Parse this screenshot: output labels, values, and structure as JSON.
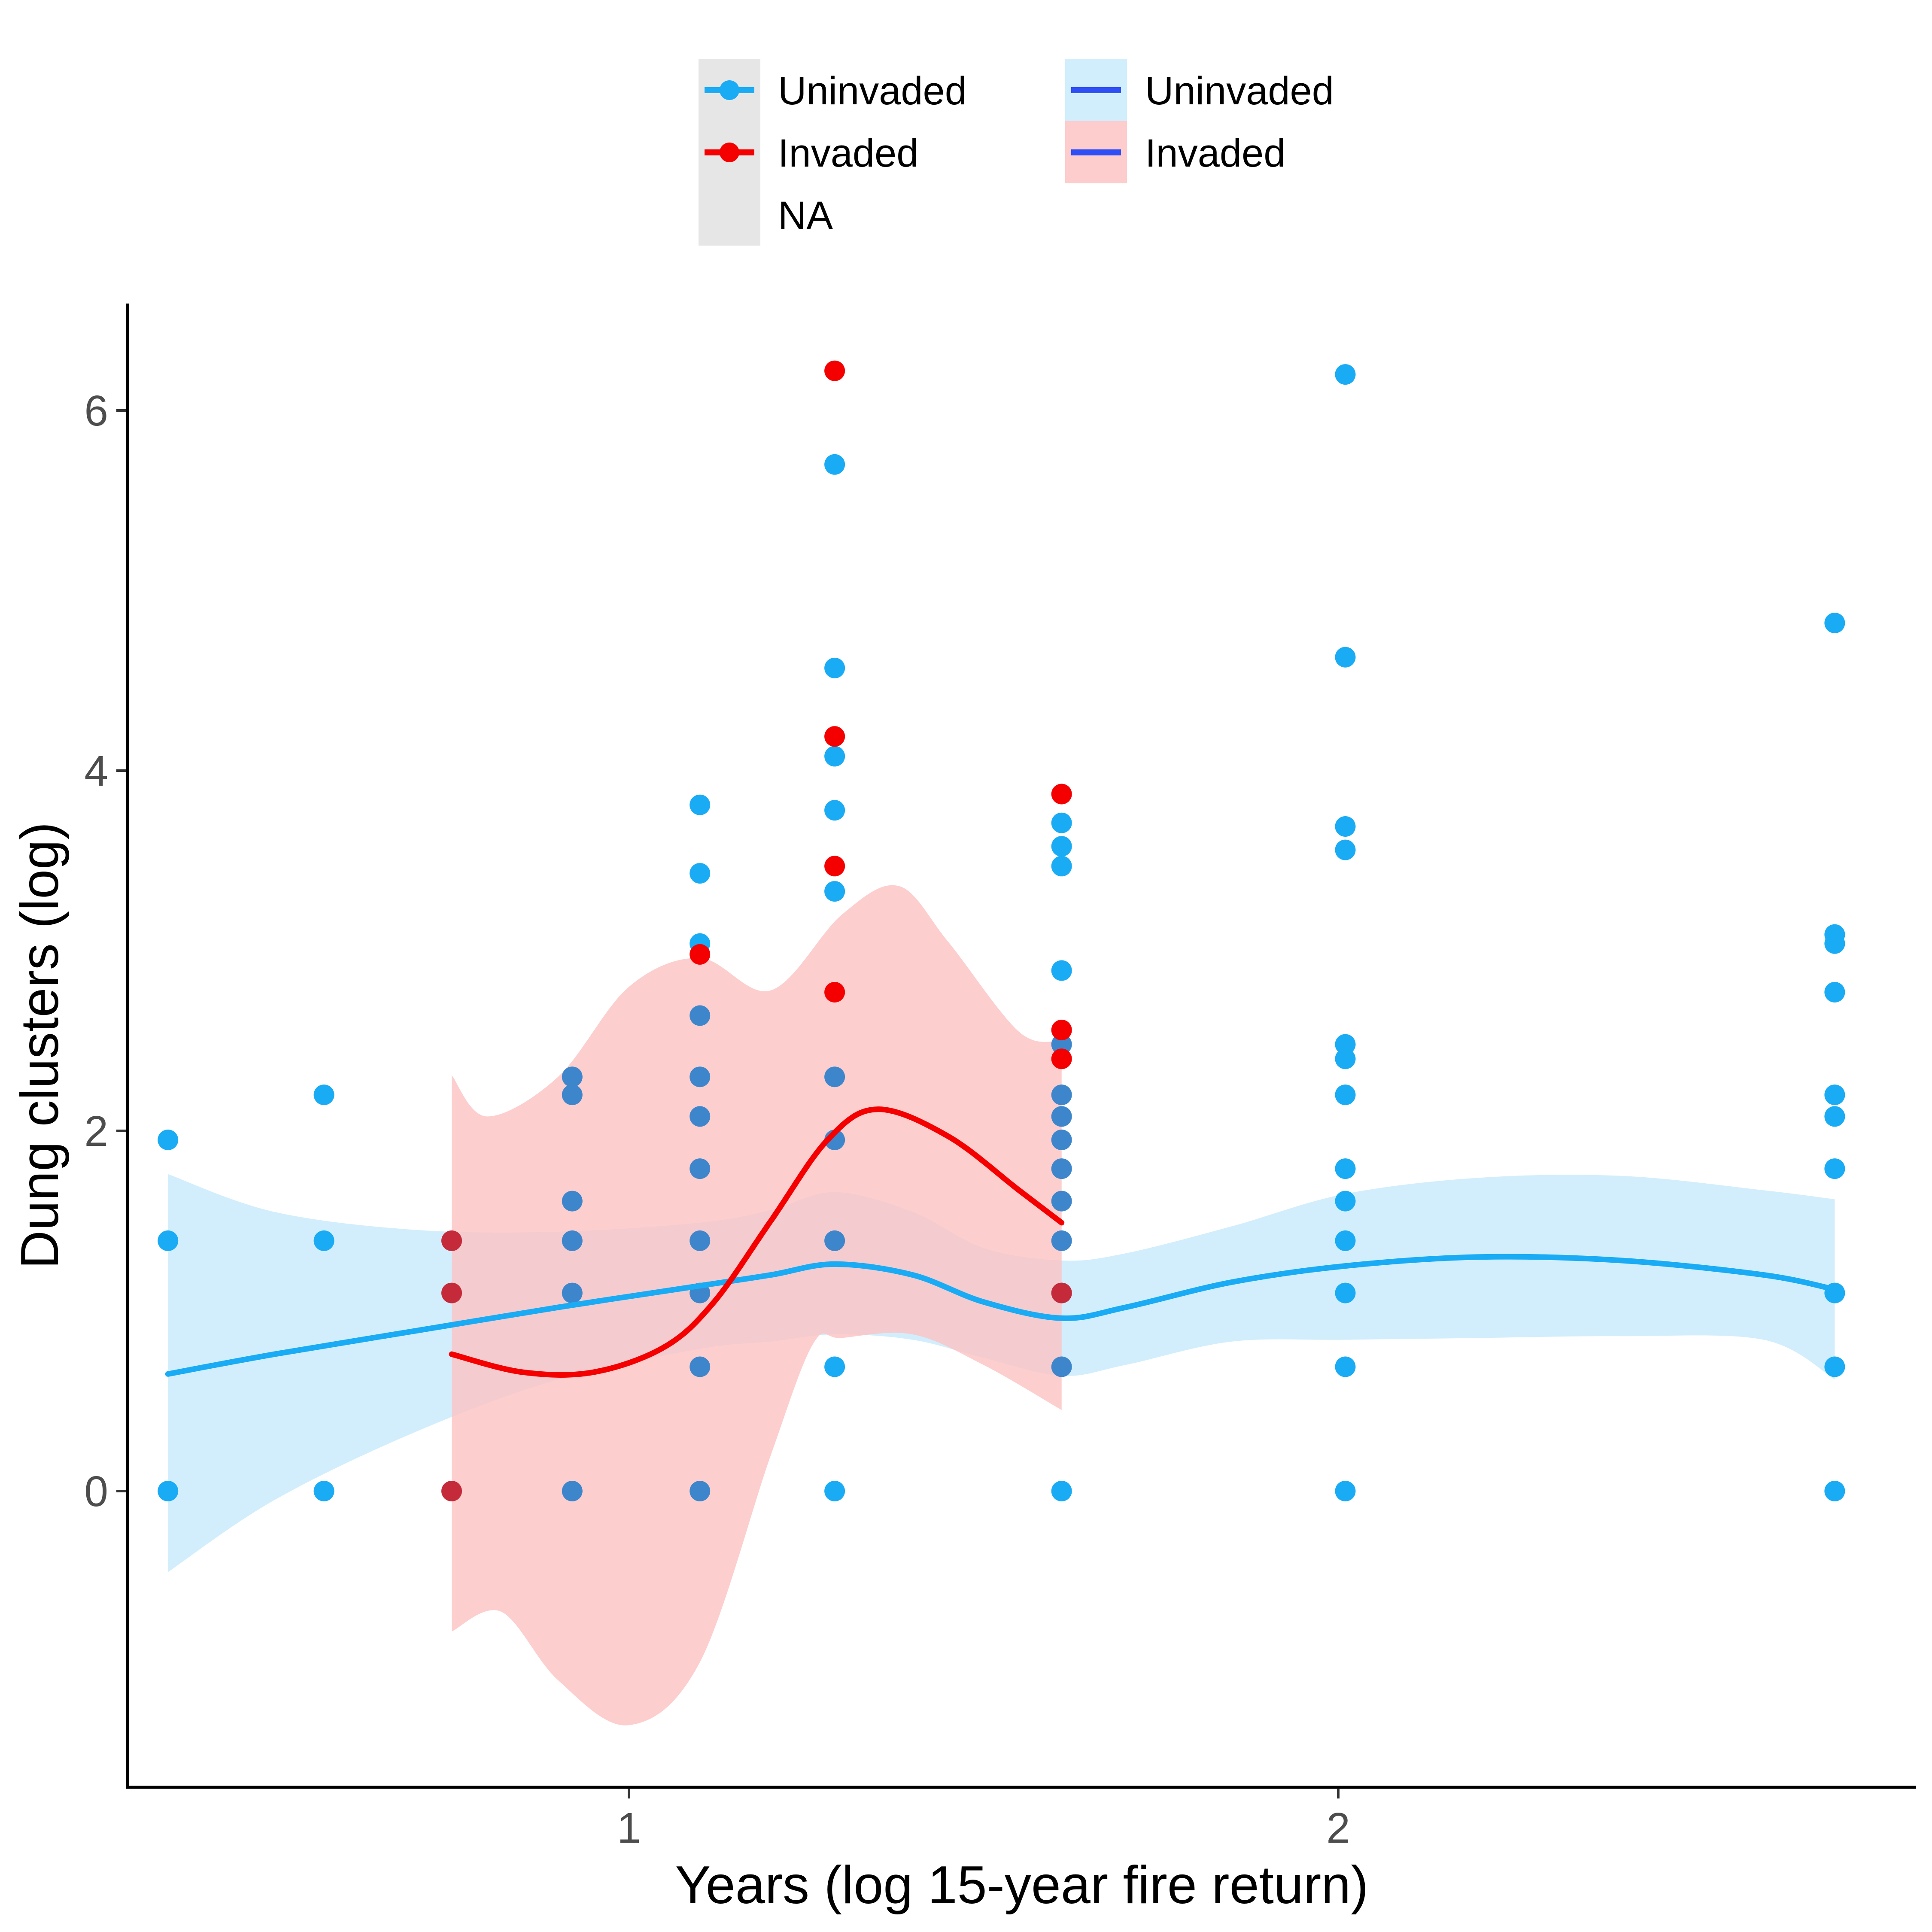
{
  "chart_data": {
    "type": "scatter",
    "title": "",
    "xlabel": "Years (log 15-year fire return)",
    "ylabel": "Dung clusters (log)",
    "xlim": [
      0.29,
      2.72
    ],
    "ylim": [
      -1.7,
      6.6
    ],
    "x_ticks": [
      {
        "value": 1,
        "label": "1"
      },
      {
        "value": 2,
        "label": "2"
      }
    ],
    "y_ticks": [
      {
        "value": 0,
        "label": "0"
      },
      {
        "value": 2,
        "label": "2"
      },
      {
        "value": 4,
        "label": "4"
      },
      {
        "value": 6,
        "label": "6"
      }
    ],
    "grid": false,
    "legend_position": "top",
    "legend": {
      "fill_key": [
        {
          "label": "Uninvaded",
          "color": "#1aabf5"
        },
        {
          "label": "Invaded",
          "color": "#f50000"
        },
        {
          "label": "NA",
          "color": ""
        }
      ],
      "line_key": [
        {
          "label": "Uninvaded",
          "color": "#2f4ef5",
          "band_color": "#d1eefc"
        },
        {
          "label": "Invaded",
          "color": "#2f4ef5",
          "band_color": "#fdcccc"
        }
      ],
      "na_band_color": "#e6e6e6"
    },
    "colors": {
      "uninvaded": "#1aabf5",
      "invaded": "#f50000",
      "uninvaded_band": "#caebfb",
      "invaded_band": "#fdc2c2",
      "overlap_point": "#3d86cc",
      "overlap_invaded_point": "#c42a3a"
    },
    "series": [
      {
        "group": "uninvaded",
        "points": [
          [
            0.35,
            1.95
          ],
          [
            0.35,
            1.39
          ],
          [
            0.35,
            0.0
          ],
          [
            0.57,
            2.2
          ],
          [
            0.57,
            1.39
          ],
          [
            0.57,
            0.0
          ],
          [
            0.92,
            2.3
          ],
          [
            0.92,
            2.2
          ],
          [
            0.92,
            1.61
          ],
          [
            0.92,
            1.39
          ],
          [
            0.92,
            1.1
          ],
          [
            0.92,
            0.0
          ],
          [
            1.1,
            3.81
          ],
          [
            1.1,
            3.43
          ],
          [
            1.1,
            3.04
          ],
          [
            1.1,
            2.64
          ],
          [
            1.1,
            2.3
          ],
          [
            1.1,
            2.08
          ],
          [
            1.1,
            1.79
          ],
          [
            1.1,
            1.39
          ],
          [
            1.1,
            1.1
          ],
          [
            1.1,
            0.69
          ],
          [
            1.1,
            0.0
          ],
          [
            1.29,
            5.7
          ],
          [
            1.29,
            4.57
          ],
          [
            1.29,
            4.08
          ],
          [
            1.29,
            3.78
          ],
          [
            1.29,
            3.33
          ],
          [
            1.29,
            2.3
          ],
          [
            1.29,
            1.95
          ],
          [
            1.29,
            1.39
          ],
          [
            1.29,
            0.69
          ],
          [
            1.29,
            0.0
          ],
          [
            1.61,
            3.71
          ],
          [
            1.61,
            3.58
          ],
          [
            1.61,
            3.47
          ],
          [
            1.61,
            2.89
          ],
          [
            1.61,
            2.48
          ],
          [
            1.61,
            2.2
          ],
          [
            1.61,
            2.08
          ],
          [
            1.61,
            1.95
          ],
          [
            1.61,
            1.79
          ],
          [
            1.61,
            1.61
          ],
          [
            1.61,
            1.39
          ],
          [
            1.61,
            1.1
          ],
          [
            1.61,
            0.69
          ],
          [
            1.61,
            0.0
          ],
          [
            2.01,
            6.2
          ],
          [
            2.01,
            4.63
          ],
          [
            2.01,
            3.69
          ],
          [
            2.01,
            3.56
          ],
          [
            2.01,
            2.48
          ],
          [
            2.01,
            2.4
          ],
          [
            2.01,
            2.2
          ],
          [
            2.01,
            1.79
          ],
          [
            2.01,
            1.61
          ],
          [
            2.01,
            1.39
          ],
          [
            2.01,
            1.1
          ],
          [
            2.01,
            0.69
          ],
          [
            2.01,
            0.0
          ],
          [
            2.7,
            4.82
          ],
          [
            2.7,
            3.09
          ],
          [
            2.7,
            3.04
          ],
          [
            2.7,
            2.77
          ],
          [
            2.7,
            2.2
          ],
          [
            2.7,
            2.08
          ],
          [
            2.7,
            1.79
          ],
          [
            2.7,
            1.1
          ],
          [
            2.7,
            0.69
          ],
          [
            2.7,
            0.0
          ]
        ],
        "smooth": [
          [
            0.35,
            0.65
          ],
          [
            0.5,
            0.76
          ],
          [
            0.7,
            0.89
          ],
          [
            0.9,
            1.02
          ],
          [
            1.1,
            1.14
          ],
          [
            1.2,
            1.2
          ],
          [
            1.29,
            1.26
          ],
          [
            1.4,
            1.2
          ],
          [
            1.5,
            1.05
          ],
          [
            1.61,
            0.96
          ],
          [
            1.7,
            1.02
          ],
          [
            1.85,
            1.16
          ],
          [
            2.01,
            1.25
          ],
          [
            2.2,
            1.3
          ],
          [
            2.4,
            1.28
          ],
          [
            2.6,
            1.2
          ],
          [
            2.7,
            1.12
          ]
        ],
        "band_upper": [
          [
            0.35,
            1.76
          ],
          [
            0.5,
            1.55
          ],
          [
            0.7,
            1.45
          ],
          [
            0.9,
            1.44
          ],
          [
            1.1,
            1.49
          ],
          [
            1.2,
            1.56
          ],
          [
            1.29,
            1.66
          ],
          [
            1.4,
            1.55
          ],
          [
            1.5,
            1.35
          ],
          [
            1.61,
            1.28
          ],
          [
            1.7,
            1.32
          ],
          [
            1.85,
            1.47
          ],
          [
            2.01,
            1.65
          ],
          [
            2.2,
            1.74
          ],
          [
            2.4,
            1.75
          ],
          [
            2.6,
            1.67
          ],
          [
            2.7,
            1.62
          ]
        ],
        "band_lower": [
          [
            0.35,
            -0.45
          ],
          [
            0.5,
            -0.05
          ],
          [
            0.7,
            0.33
          ],
          [
            0.9,
            0.62
          ],
          [
            1.1,
            0.79
          ],
          [
            1.2,
            0.83
          ],
          [
            1.29,
            0.87
          ],
          [
            1.4,
            0.84
          ],
          [
            1.5,
            0.74
          ],
          [
            1.61,
            0.64
          ],
          [
            1.7,
            0.7
          ],
          [
            1.85,
            0.83
          ],
          [
            2.01,
            0.84
          ],
          [
            2.2,
            0.85
          ],
          [
            2.4,
            0.86
          ],
          [
            2.6,
            0.84
          ],
          [
            2.7,
            0.62
          ]
        ]
      },
      {
        "group": "invaded",
        "points": [
          [
            0.75,
            1.39
          ],
          [
            0.75,
            1.1
          ],
          [
            0.75,
            0.0
          ],
          [
            1.1,
            2.98
          ],
          [
            1.29,
            6.22
          ],
          [
            1.29,
            4.19
          ],
          [
            1.29,
            3.47
          ],
          [
            1.29,
            2.77
          ],
          [
            1.61,
            3.87
          ],
          [
            1.61,
            2.56
          ],
          [
            1.61,
            2.4
          ],
          [
            1.61,
            1.1
          ]
        ],
        "smooth": [
          [
            0.75,
            0.76
          ],
          [
            0.85,
            0.66
          ],
          [
            0.95,
            0.66
          ],
          [
            1.05,
            0.8
          ],
          [
            1.12,
            1.05
          ],
          [
            1.2,
            1.5
          ],
          [
            1.28,
            1.95
          ],
          [
            1.35,
            2.12
          ],
          [
            1.45,
            1.97
          ],
          [
            1.55,
            1.67
          ],
          [
            1.61,
            1.49
          ]
        ],
        "band_upper": [
          [
            0.75,
            2.31
          ],
          [
            0.8,
            2.08
          ],
          [
            0.9,
            2.3
          ],
          [
            1.0,
            2.8
          ],
          [
            1.1,
            2.96
          ],
          [
            1.2,
            2.78
          ],
          [
            1.3,
            3.2
          ],
          [
            1.38,
            3.36
          ],
          [
            1.45,
            3.05
          ],
          [
            1.55,
            2.55
          ],
          [
            1.61,
            2.5
          ]
        ],
        "band_lower": [
          [
            0.75,
            -0.78
          ],
          [
            0.82,
            -0.67
          ],
          [
            0.9,
            -1.05
          ],
          [
            1.0,
            -1.3
          ],
          [
            1.1,
            -0.95
          ],
          [
            1.2,
            0.2
          ],
          [
            1.26,
            0.82
          ],
          [
            1.3,
            0.85
          ],
          [
            1.4,
            0.87
          ],
          [
            1.5,
            0.7
          ],
          [
            1.61,
            0.45
          ]
        ]
      }
    ]
  }
}
